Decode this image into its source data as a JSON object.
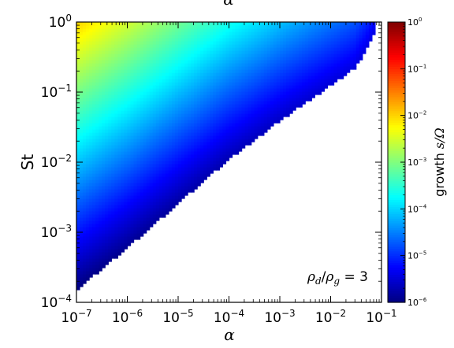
{
  "chart_data": {
    "type": "heatmap",
    "title_fragment": "α",
    "xlabel": "α",
    "ylabel": "St",
    "xscale": "log",
    "yscale": "log",
    "xlim": [
      1e-07,
      0.1
    ],
    "ylim": [
      0.0001,
      1.0
    ],
    "x_ticks": [
      {
        "value": 1e-07,
        "base": "10",
        "exp": "−7"
      },
      {
        "value": 1e-06,
        "base": "10",
        "exp": "−6"
      },
      {
        "value": 1e-05,
        "base": "10",
        "exp": "−5"
      },
      {
        "value": 0.0001,
        "base": "10",
        "exp": "−4"
      },
      {
        "value": 0.001,
        "base": "10",
        "exp": "−3"
      },
      {
        "value": 0.01,
        "base": "10",
        "exp": "−2"
      },
      {
        "value": 0.1,
        "base": "10",
        "exp": "−1"
      }
    ],
    "y_ticks": [
      {
        "value": 0.0001,
        "base": "10",
        "exp": "−4"
      },
      {
        "value": 0.001,
        "base": "10",
        "exp": "−3"
      },
      {
        "value": 0.01,
        "base": "10",
        "exp": "−2"
      },
      {
        "value": 0.1,
        "base": "10",
        "exp": "−1"
      },
      {
        "value": 1.0,
        "base": "10",
        "exp": "0"
      }
    ],
    "colorbar": {
      "label_prefix": "growth ",
      "label_math": "s/Ω",
      "scale": "log",
      "colormap": "jet",
      "range": [
        1e-06,
        1.0
      ],
      "ticks": [
        {
          "value": 1.0,
          "base": "10",
          "exp": "0"
        },
        {
          "value": 0.1,
          "base": "10",
          "exp": "−1"
        },
        {
          "value": 0.01,
          "base": "10",
          "exp": "−2"
        },
        {
          "value": 0.001,
          "base": "10",
          "exp": "−3"
        },
        {
          "value": 0.0001,
          "base": "10",
          "exp": "−4"
        },
        {
          "value": 1e-05,
          "base": "10",
          "exp": "−5"
        },
        {
          "value": 1e-06,
          "base": "10",
          "exp": "−6"
        }
      ]
    },
    "boundary": {
      "x": [
        1e-07,
        1e-06,
        1e-05,
        0.0001,
        0.001,
        0.01,
        0.03,
        0.05,
        0.07,
        0.08
      ],
      "y": [
        0.00015,
        0.0006,
        0.0026,
        0.011,
        0.039,
        0.125,
        0.22,
        0.4,
        0.65,
        1.0
      ]
    },
    "annotation": {
      "rho_d": "ρ",
      "sub_d": "d",
      "slash": "/",
      "rho_g": "ρ",
      "sub_g": "g",
      "equals": " = 3"
    }
  },
  "colors": {
    "background": "#ffffff",
    "axes": "#000000"
  }
}
